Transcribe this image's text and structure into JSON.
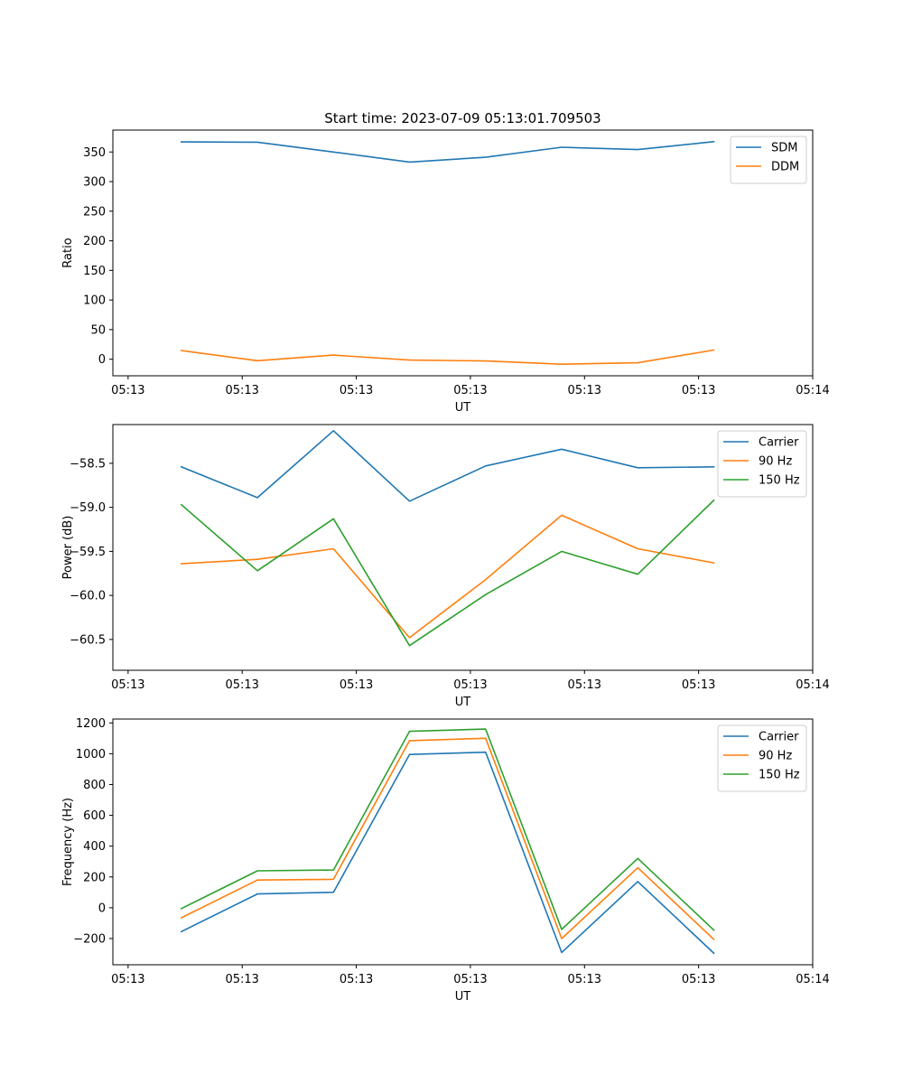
{
  "chart_data": [
    {
      "type": "line",
      "title": "Start time: 2023-07-09 05:13:01.709503",
      "xlabel": "UT",
      "ylabel": "Ratio",
      "x": [
        1,
        2,
        3,
        4,
        5,
        6,
        7,
        8
      ],
      "xlim": [
        0.1,
        9.3
      ],
      "xticks": [
        {
          "x": 0.3,
          "label": "05:13"
        },
        {
          "x": 1.8,
          "label": "05:13"
        },
        {
          "x": 3.3,
          "label": "05:13"
        },
        {
          "x": 4.8,
          "label": "05:13"
        },
        {
          "x": 6.3,
          "label": "05:13"
        },
        {
          "x": 7.8,
          "label": "05:13"
        },
        {
          "x": 9.3,
          "label": "05:14"
        }
      ],
      "ylim": [
        -28,
        387
      ],
      "yticks": [
        0,
        50,
        100,
        150,
        200,
        250,
        300,
        350
      ],
      "ytick_labels": [
        "0",
        "50",
        "100",
        "150",
        "200",
        "250",
        "300",
        "350"
      ],
      "legend_position": "upper right",
      "series": [
        {
          "name": "SDM",
          "color": "#1f77b4",
          "values": [
            367,
            366.5,
            350,
            333,
            341,
            358,
            354,
            367.5
          ]
        },
        {
          "name": "DDM",
          "color": "#ff7f0e",
          "values": [
            14.5,
            -2.5,
            7,
            -1.5,
            -3,
            -8.5,
            -6,
            15.5
          ]
        }
      ]
    },
    {
      "type": "line",
      "title": "",
      "xlabel": "UT",
      "ylabel": "Power (dB)",
      "x": [
        1,
        2,
        3,
        4,
        5,
        6,
        7,
        8
      ],
      "xlim": [
        0.1,
        9.3
      ],
      "xticks": [
        {
          "x": 0.3,
          "label": "05:13"
        },
        {
          "x": 1.8,
          "label": "05:13"
        },
        {
          "x": 3.3,
          "label": "05:13"
        },
        {
          "x": 4.8,
          "label": "05:13"
        },
        {
          "x": 6.3,
          "label": "05:13"
        },
        {
          "x": 7.8,
          "label": "05:13"
        },
        {
          "x": 9.3,
          "label": "05:14"
        }
      ],
      "ylim": [
        -60.85,
        -58.06
      ],
      "yticks": [
        -58.5,
        -59.0,
        -59.5,
        -60.0,
        -60.5
      ],
      "ytick_labels": [
        "−58.5",
        "−59.0",
        "−59.5",
        "−60.0",
        "−60.5"
      ],
      "legend_position": "upper right",
      "series": [
        {
          "name": "Carrier",
          "color": "#1f77b4",
          "values": [
            -58.54,
            -58.89,
            -58.13,
            -58.93,
            -58.53,
            -58.34,
            -58.55,
            -58.54
          ]
        },
        {
          "name": "90 Hz",
          "color": "#ff7f0e",
          "values": [
            -59.64,
            -59.59,
            -59.47,
            -60.48,
            -59.82,
            -59.09,
            -59.47,
            -59.63
          ]
        },
        {
          "name": "150 Hz",
          "color": "#2ca02c",
          "values": [
            -58.97,
            -59.72,
            -59.13,
            -60.57,
            -59.99,
            -59.5,
            -59.76,
            -58.92
          ]
        }
      ]
    },
    {
      "type": "line",
      "title": "",
      "xlabel": "UT",
      "ylabel": "Frequency (Hz)",
      "x": [
        1,
        2,
        3,
        4,
        5,
        6,
        7,
        8
      ],
      "xlim": [
        0.1,
        9.3
      ],
      "xticks": [
        {
          "x": 0.3,
          "label": "05:13"
        },
        {
          "x": 1.8,
          "label": "05:13"
        },
        {
          "x": 3.3,
          "label": "05:13"
        },
        {
          "x": 4.8,
          "label": "05:13"
        },
        {
          "x": 6.3,
          "label": "05:13"
        },
        {
          "x": 7.8,
          "label": "05:13"
        },
        {
          "x": 9.3,
          "label": "05:14"
        }
      ],
      "ylim": [
        -370,
        1225
      ],
      "yticks": [
        -200,
        0,
        200,
        400,
        600,
        800,
        1000,
        1200
      ],
      "ytick_labels": [
        "−200",
        "0",
        "200",
        "400",
        "600",
        "800",
        "1000",
        "1200"
      ],
      "legend_position": "upper right",
      "series": [
        {
          "name": "Carrier",
          "color": "#1f77b4",
          "values": [
            -155,
            90,
            100,
            995,
            1010,
            -290,
            170,
            -295
          ]
        },
        {
          "name": "90 Hz",
          "color": "#ff7f0e",
          "values": [
            -65,
            180,
            185,
            1085,
            1100,
            -200,
            260,
            -205
          ]
        },
        {
          "name": "150 Hz",
          "color": "#2ca02c",
          "values": [
            -5,
            240,
            245,
            1145,
            1160,
            -140,
            320,
            -145
          ]
        }
      ]
    }
  ]
}
